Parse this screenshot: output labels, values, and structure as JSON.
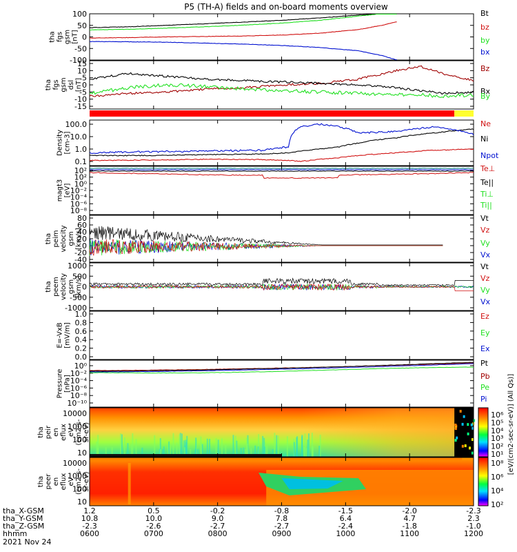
{
  "title": "P5 (TH-A) fields and on-board moments overview",
  "colors": {
    "black": "#000000",
    "red": "#d01010",
    "green": "#20e020",
    "blue": "#0010d0",
    "maroon": "#a00000",
    "bar_red": "#ff0000",
    "bar_yellow": "#ffff30",
    "teal": "#008080"
  },
  "chart_data": [
    {
      "type": "line",
      "id": "fgs_gsm",
      "ylabel_lines": [
        "tha",
        "fgs",
        "gsm",
        "[nT]"
      ],
      "yticks": [
        "100",
        "50",
        "0",
        "-50",
        "-100"
      ],
      "ylim": [
        -100,
        100
      ],
      "legend": [
        {
          "label": "Bt",
          "color": "#000000"
        },
        {
          "label": "bz",
          "color": "#d01010"
        },
        {
          "label": "by",
          "color": "#20e020"
        },
        {
          "label": "bx",
          "color": "#0010d0"
        }
      ],
      "x": [
        0.0,
        0.1,
        0.2,
        0.3,
        0.4,
        0.5,
        0.6,
        0.7,
        0.76,
        0.8
      ],
      "series": [
        {
          "name": "Bt",
          "values": [
            40,
            44,
            50,
            57,
            64,
            72,
            82,
            95,
            100,
            100
          ]
        },
        {
          "name": "bz",
          "values": [
            -5,
            -3,
            0,
            2,
            4,
            8,
            16,
            32,
            50,
            65
          ]
        },
        {
          "name": "by",
          "values": [
            30,
            33,
            38,
            44,
            51,
            60,
            72,
            90,
            100,
            100
          ]
        },
        {
          "name": "bx",
          "values": [
            -20,
            -21,
            -23,
            -27,
            -31,
            -37,
            -46,
            -60,
            -80,
            -100
          ]
        }
      ]
    },
    {
      "type": "line",
      "id": "fgs_dsl",
      "ylabel_lines": [
        "tha",
        "fgs",
        "gsm",
        "dsl",
        "[nT]"
      ],
      "yticks": [
        "15",
        "10",
        "5",
        "0",
        "-5",
        "-10",
        "-15"
      ],
      "ylim": [
        -15,
        15
      ],
      "legend": [
        {
          "label": "Bz",
          "color": "#a00000"
        },
        {
          "label": "Bx",
          "color": "#000000"
        },
        {
          "label": "By",
          "color": "#20e020"
        }
      ],
      "x": [
        0.0,
        0.1,
        0.2,
        0.3,
        0.4,
        0.5,
        0.6,
        0.7,
        0.8,
        0.86,
        0.92,
        1.0
      ],
      "series": [
        {
          "name": "Bz",
          "values": [
            -8,
            -6,
            -5,
            -3,
            -2,
            0,
            1,
            4,
            10,
            13,
            8,
            3
          ]
        },
        {
          "name": "Bx",
          "values": [
            4,
            8,
            6,
            4,
            3,
            2,
            1,
            0,
            -2,
            -4,
            -6,
            -5
          ]
        },
        {
          "name": "By",
          "values": [
            -6,
            -2,
            0,
            -1,
            -3,
            -4,
            -5,
            -6,
            -7,
            -7,
            -8,
            -7
          ]
        }
      ]
    },
    {
      "type": "line",
      "id": "density",
      "ylabel_lines": [
        "Density",
        "[cm-3]"
      ],
      "yticks": [
        "100.0",
        "10.0",
        "1.0",
        "0.1"
      ],
      "log_scale": true,
      "ylim": [
        0.08,
        150
      ],
      "legend": [
        {
          "label": "Ne",
          "color": "#d01010"
        },
        {
          "label": "Ni",
          "color": "#000000"
        },
        {
          "label": "Npot",
          "color": "#0010d0"
        }
      ],
      "x": [
        0.0,
        0.15,
        0.3,
        0.45,
        0.52,
        0.55,
        0.6,
        0.65,
        0.7,
        0.8,
        0.9,
        1.0
      ],
      "series": [
        {
          "name": "Ne",
          "values": [
            0.12,
            0.13,
            0.15,
            0.14,
            0.12,
            0.1,
            0.15,
            0.2,
            0.3,
            0.5,
            0.8,
            1.0
          ]
        },
        {
          "name": "Ni",
          "values": [
            0.3,
            0.3,
            0.35,
            0.4,
            0.5,
            0.7,
            1.0,
            1.5,
            3.0,
            8.0,
            20.0,
            40.0
          ]
        },
        {
          "name": "Npot",
          "values": [
            0.5,
            0.6,
            0.7,
            0.8,
            1.5,
            60.0,
            100.0,
            60.0,
            20.0,
            25.0,
            60.0,
            15.0
          ]
        }
      ]
    },
    {
      "type": "line",
      "id": "magt3",
      "ylabel_lines": [
        "magt3",
        "[eV]"
      ],
      "yticks": [
        "10²",
        "10²",
        "10⁰",
        "10⁻²",
        "10⁻⁴",
        "10⁻⁶",
        "10⁻⁸"
      ],
      "legend": [
        {
          "label": "Te⊥",
          "color": "#d01010"
        },
        {
          "label": "Te||",
          "color": "#000000"
        },
        {
          "label": "Ti⊥",
          "color": "#20e020"
        },
        {
          "label": "Ti||",
          "color": "#20e020"
        }
      ]
    },
    {
      "type": "line",
      "id": "peim_velocity",
      "ylabel_lines": [
        "tha",
        "peim",
        "velocity",
        "gsm",
        "[km/s]"
      ],
      "yticks": [
        "80",
        "60",
        "40",
        "20",
        "0",
        "-20",
        "-40"
      ],
      "ylim": [
        -40,
        80
      ],
      "legend": [
        {
          "label": "Vt",
          "color": "#000000"
        },
        {
          "label": "Vz",
          "color": "#d01010"
        },
        {
          "label": "Vy",
          "color": "#20e020"
        },
        {
          "label": "Vx",
          "color": "#0010d0"
        }
      ]
    },
    {
      "type": "line",
      "id": "peem_velocity",
      "ylabel_lines": [
        "tha",
        "peem",
        "velocity",
        "gsm",
        "[km/s]"
      ],
      "yticks": [
        "1000",
        "500",
        "0",
        "-500",
        "-1000"
      ],
      "ylim": [
        -1000,
        1000
      ],
      "legend": [
        {
          "label": "Vt",
          "color": "#000000"
        },
        {
          "label": "Vz",
          "color": "#d01010"
        },
        {
          "label": "Vy",
          "color": "#20e020"
        },
        {
          "label": "Vx",
          "color": "#0010d0"
        }
      ]
    },
    {
      "type": "line",
      "id": "e_field",
      "ylabel_lines": [
        "E=-VxB",
        "[mV/m]"
      ],
      "yticks": [
        "1.0",
        "0.8",
        "0.6",
        "0.4",
        "0.2",
        "0.0"
      ],
      "ylim": [
        0,
        1
      ],
      "legend": [
        {
          "label": "Ez",
          "color": "#d01010"
        },
        {
          "label": "Ey",
          "color": "#20e020"
        },
        {
          "label": "Ex",
          "color": "#0010d0"
        }
      ]
    },
    {
      "type": "line",
      "id": "pressure",
      "ylabel_lines": [
        "Pressure",
        "[nPa]"
      ],
      "yticks": [
        "10⁰",
        "10⁻²",
        "10⁻⁴",
        "10⁻⁶",
        "10⁻⁸",
        "10⁻¹⁰"
      ],
      "log_scale": true,
      "legend": [
        {
          "label": "Pt",
          "color": "#000000"
        },
        {
          "label": "Pb",
          "color": "#a00000"
        },
        {
          "label": "Pe",
          "color": "#20e020"
        },
        {
          "label": "Pi",
          "color": "#0010d0"
        }
      ]
    },
    {
      "type": "heatmap",
      "id": "peir_spectrogram",
      "ylabel_lines": [
        "tha",
        "peir",
        "en",
        "eflux",
        "eV",
        "(cm2-s-",
        "sr-eV)"
      ],
      "yticks": [
        "10000",
        "1000",
        "100",
        "10"
      ],
      "colorbar_ticks": [
        "10⁶",
        "10⁵",
        "10⁴",
        "10³",
        "10²",
        "10¹"
      ]
    },
    {
      "type": "heatmap",
      "id": "peer_spectrogram",
      "ylabel_lines": [
        "tha",
        "peer",
        "en",
        "eflux",
        "eV",
        "(cm2-s-",
        "sr-eV)"
      ],
      "yticks": [
        "10000",
        "1000",
        "100",
        "10"
      ],
      "colorbar_ticks": [
        "10⁸",
        "10⁶",
        "10⁴",
        "10²"
      ]
    }
  ],
  "colorbar_label": "[eV/(cm2-sec-sr-eV)] (All Qs)]",
  "footer": {
    "row_labels": [
      "tha_X-GSM",
      "tha_Y-GSM",
      "tha_Z-GSM",
      "hhmm",
      "2021 Nov 24"
    ],
    "x_gsm": [
      "1.2",
      "0.5",
      "-0.2",
      "-0.8",
      "-1.5",
      "-2.0",
      "-2.3"
    ],
    "y_gsm": [
      "10.8",
      "10.0",
      "9.0",
      "7.8",
      "6.4",
      "4.7",
      "2.3"
    ],
    "z_gsm": [
      "-2.3",
      "-2.6",
      "-2.7",
      "-2.7",
      "-2.4",
      "-1.8",
      "-1.0"
    ],
    "hhmm": [
      "0600",
      "0700",
      "0800",
      "0900",
      "1000",
      "1100",
      "1200"
    ]
  }
}
